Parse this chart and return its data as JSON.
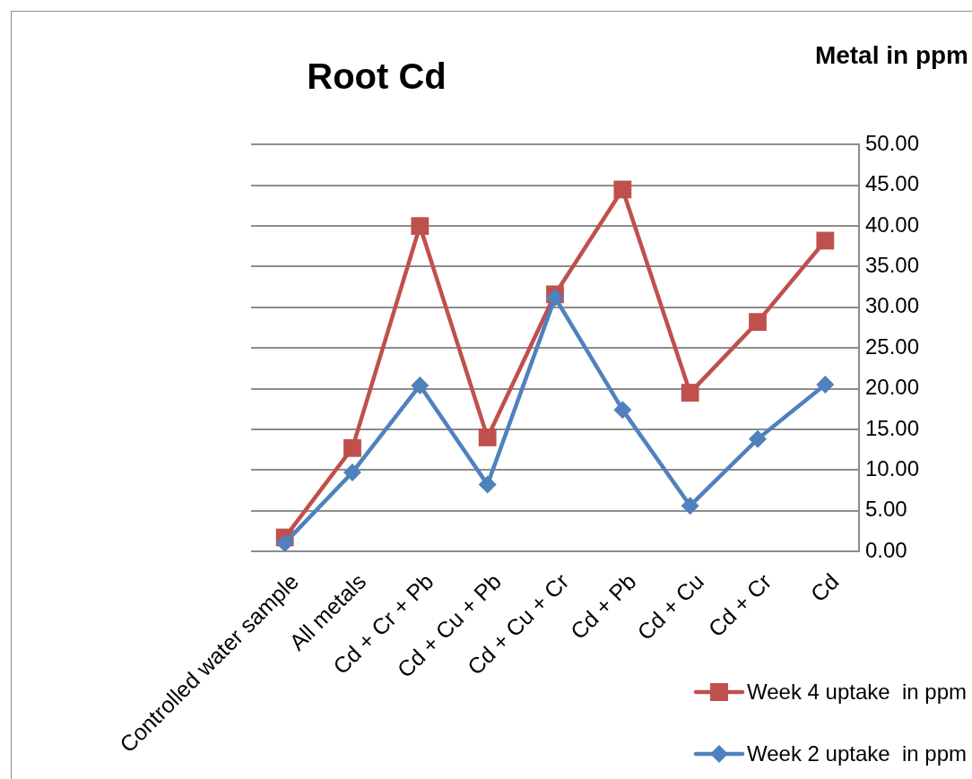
{
  "chart_data": {
    "type": "line",
    "title": "Root Cd",
    "ylabel": "Metal in ppm",
    "categories": [
      "Controlled water sample",
      "All metals",
      "Cd + Cr + Pb",
      "Cd + Cu + Pb",
      "Cd + Cu + Cr",
      "Cd + Pb",
      "Cd + Cu",
      "Cd + Cr",
      "Cd"
    ],
    "series": [
      {
        "name": "Week 4 uptake  in ppm",
        "color": "#c0504d",
        "marker": "square",
        "values": [
          1.7,
          12.7,
          40.0,
          14.0,
          31.6,
          44.5,
          19.5,
          28.2,
          38.2
        ]
      },
      {
        "name": "Week 2 uptake  in ppm",
        "color": "#4f81bd",
        "marker": "diamond",
        "values": [
          1.0,
          9.7,
          20.4,
          8.2,
          31.2,
          17.4,
          5.6,
          13.8,
          20.5
        ]
      }
    ],
    "ylim": [
      0,
      50
    ],
    "yticks": [
      {
        "value": 0,
        "label": "0.00"
      },
      {
        "value": 5,
        "label": "5.00"
      },
      {
        "value": 10,
        "label": "10.00"
      },
      {
        "value": 15,
        "label": "15.00"
      },
      {
        "value": 20,
        "label": "20.00"
      },
      {
        "value": 25,
        "label": "25.00"
      },
      {
        "value": 30,
        "label": "30.00"
      },
      {
        "value": 35,
        "label": "35.00"
      },
      {
        "value": 40,
        "label": "40.00"
      },
      {
        "value": 45,
        "label": "45.00"
      },
      {
        "value": 50,
        "label": "50.00"
      }
    ],
    "grid": "y",
    "legend": "bottom right",
    "line_style": "solid"
  }
}
